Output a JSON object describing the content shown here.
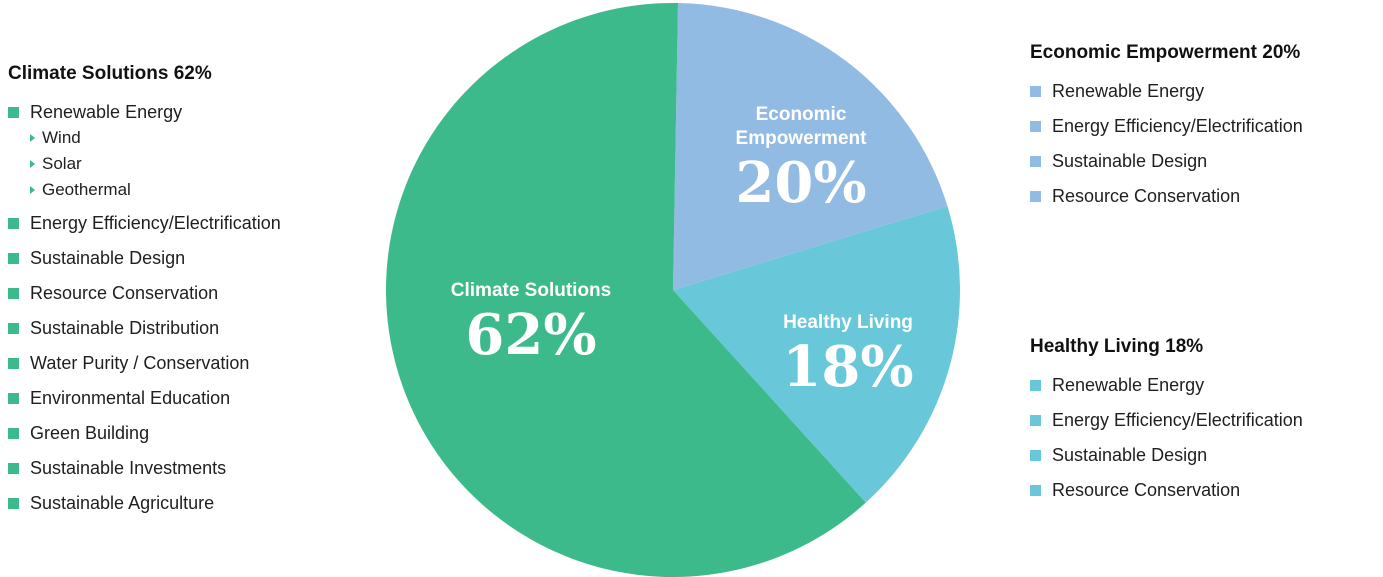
{
  "chart_data": {
    "type": "pie",
    "slices": [
      {
        "name": "Climate Solutions",
        "value": 62,
        "pct_label": "62%",
        "color": "#3dba8b"
      },
      {
        "name": "Economic Empowerment",
        "value": 20,
        "pct_label": "20%",
        "color": "#92bbe3"
      },
      {
        "name": "Healthy Living",
        "value": 18,
        "pct_label": "18%",
        "color": "#68c8da"
      }
    ]
  },
  "left_panel": {
    "title": "Climate Solutions 62%",
    "items": [
      {
        "label": "Renewable Energy",
        "sub": [
          "Wind",
          "Solar",
          "Geothermal"
        ]
      },
      {
        "label": "Energy Efficiency/Electrification"
      },
      {
        "label": "Sustainable Design"
      },
      {
        "label": "Resource Conservation"
      },
      {
        "label": "Sustainable Distribution"
      },
      {
        "label": "Water Purity / Conservation"
      },
      {
        "label": "Environmental Education"
      },
      {
        "label": "Green Building"
      },
      {
        "label": "Sustainable Investments"
      },
      {
        "label": "Sustainable Agriculture"
      }
    ]
  },
  "right_top_panel": {
    "title": "Economic Empowerment 20%",
    "items": [
      "Renewable Energy",
      "Energy Efficiency/Electrification",
      "Sustainable Design",
      "Resource Conservation"
    ]
  },
  "right_bottom_panel": {
    "title": "Healthy Living 18%",
    "items": [
      "Renewable Energy",
      "Energy Efficiency/Electrification",
      "Sustainable Design",
      "Resource Conservation"
    ]
  }
}
